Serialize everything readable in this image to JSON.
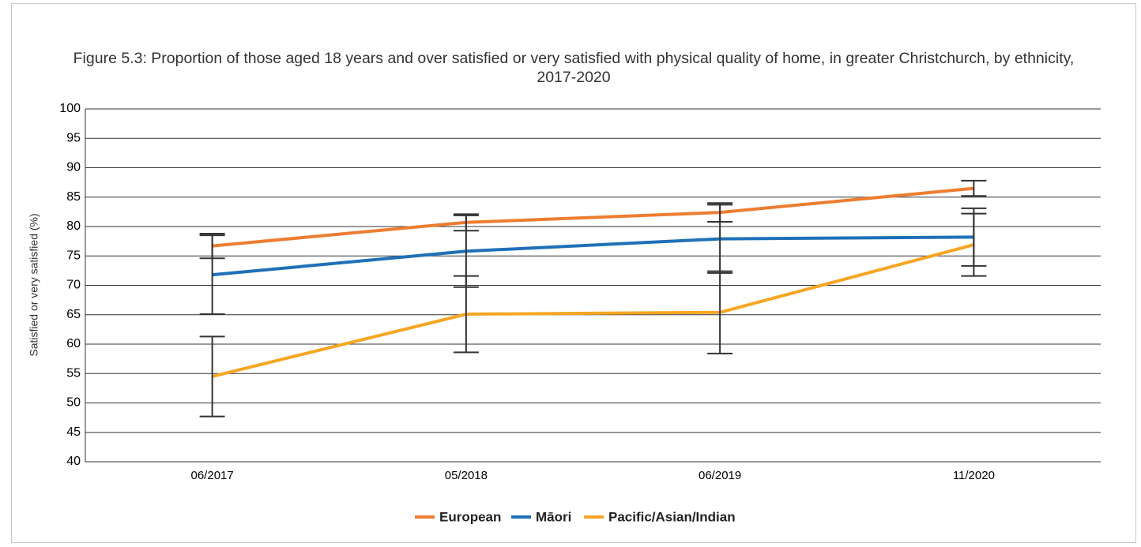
{
  "chart_data": {
    "type": "line",
    "title": "Figure 5.3: Proportion of those aged 18 years and over satisfied or very satisfied with physical quality of home, in greater Christchurch, by ethnicity, 2017-2020",
    "y_label": "Satisfied or very satisfied (%)",
    "categories": [
      "06/2017",
      "05/2018",
      "06/2019",
      "11/2020"
    ],
    "series": [
      {
        "name": "European",
        "color": "#ed7d31",
        "values": [
          76.7,
          80.7,
          82.4,
          86.5
        ],
        "errors": [
          2.1,
          1.4,
          1.6,
          1.3
        ]
      },
      {
        "name": "Māori",
        "color": "#1f70b8",
        "values": [
          71.8,
          75.8,
          77.9,
          78.2
        ],
        "errors": [
          6.7,
          6.1,
          5.8,
          4.9
        ]
      },
      {
        "name": "Pacific/Asian/Indian",
        "color": "#f5a623",
        "values": [
          54.5,
          65.1,
          65.4,
          76.9
        ],
        "errors": [
          6.8,
          6.5,
          7.0,
          5.3
        ]
      }
    ],
    "ylim": [
      40,
      100
    ],
    "yticks": [
      40,
      45,
      50,
      55,
      60,
      65,
      70,
      75,
      80,
      85,
      90,
      95,
      100
    ],
    "grid": true,
    "legend": "bottom",
    "error_bar_color": "#333333"
  }
}
